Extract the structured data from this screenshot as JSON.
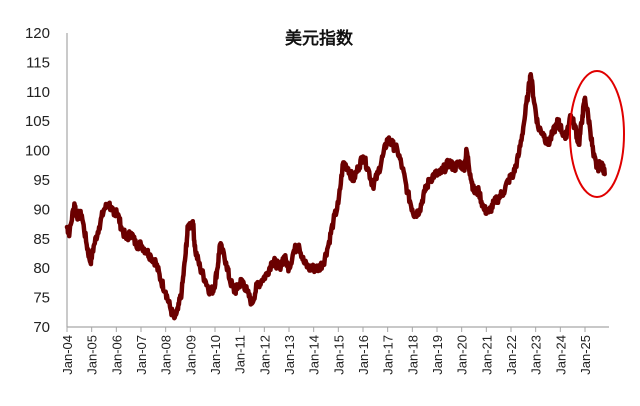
{
  "chart_data": {
    "type": "line",
    "title": "美元指数",
    "xlabel": "",
    "ylabel": "",
    "ylim": [
      70,
      120
    ],
    "yticks": [
      70,
      75,
      80,
      85,
      90,
      95,
      100,
      105,
      110,
      115,
      120
    ],
    "xticks": [
      "Jan-04",
      "Jan-05",
      "Jan-06",
      "Jan-07",
      "Jan-08",
      "Jan-09",
      "Jan-10",
      "Jan-11",
      "Jan-12",
      "Jan-13",
      "Jan-14",
      "Jan-15",
      "Jan-16",
      "Jan-17",
      "Jan-18",
      "Jan-19",
      "Jan-20",
      "Jan-21",
      "Jan-22",
      "Jan-23",
      "Jan-24",
      "Jan-25"
    ],
    "grid": false,
    "legend": null,
    "series_color": "#6b0000",
    "annotation": {
      "type": "ellipse",
      "color": "#e00000",
      "label": "highlight of 2024-2025 decline"
    },
    "series": [
      {
        "name": "美元指数",
        "x": [
          2004.0,
          2004.1,
          2004.3,
          2004.4,
          2004.6,
          2004.8,
          2004.95,
          2005.1,
          2005.3,
          2005.5,
          2005.7,
          2005.9,
          2006.0,
          2006.2,
          2006.4,
          2006.6,
          2006.8,
          2007.0,
          2007.2,
          2007.4,
          2007.6,
          2007.8,
          2008.0,
          2008.2,
          2008.35,
          2008.5,
          2008.65,
          2008.8,
          2008.9,
          2009.1,
          2009.2,
          2009.4,
          2009.6,
          2009.8,
          2009.95,
          2010.1,
          2010.2,
          2010.45,
          2010.6,
          2010.8,
          2010.95,
          2011.1,
          2011.3,
          2011.5,
          2011.7,
          2011.9,
          2012.1,
          2012.3,
          2012.45,
          2012.6,
          2012.8,
          2013.0,
          2013.2,
          2013.4,
          2013.6,
          2013.8,
          2014.0,
          2014.2,
          2014.4,
          2014.6,
          2014.8,
          2015.0,
          2015.2,
          2015.4,
          2015.6,
          2015.8,
          2016.0,
          2016.2,
          2016.4,
          2016.6,
          2016.8,
          2017.0,
          2017.2,
          2017.4,
          2017.6,
          2017.8,
          2018.0,
          2018.1,
          2018.3,
          2018.5,
          2018.7,
          2018.9,
          2019.1,
          2019.3,
          2019.5,
          2019.7,
          2019.9,
          2020.1,
          2020.2,
          2020.35,
          2020.5,
          2020.7,
          2020.9,
          2021.1,
          2021.3,
          2021.5,
          2021.7,
          2021.9,
          2022.1,
          2022.3,
          2022.5,
          2022.7,
          2022.8,
          2022.95,
          2023.1,
          2023.3,
          2023.5,
          2023.7,
          2023.9,
          2024.0,
          2024.2,
          2024.4,
          2024.6,
          2024.75,
          2024.9,
          2025.0,
          2025.2,
          2025.35,
          2025.5,
          2025.65,
          2025.8
        ],
        "values": [
          87,
          86,
          91,
          89,
          89,
          84,
          81,
          84,
          87,
          90,
          91,
          89,
          90,
          87,
          85,
          86,
          84,
          84,
          83,
          82,
          81,
          78,
          76,
          73,
          71.5,
          73,
          76,
          82,
          87,
          88,
          83,
          80,
          78,
          76,
          76.5,
          80,
          84,
          81,
          78,
          76,
          77,
          78,
          76,
          74,
          77,
          78,
          79,
          81,
          81,
          80,
          82,
          80,
          83,
          84,
          81,
          80,
          80,
          80,
          81,
          84,
          88,
          91,
          98,
          97,
          95,
          97,
          99,
          97,
          94,
          96,
          99,
          102,
          101,
          100,
          97,
          93,
          90,
          89,
          90,
          93,
          95,
          96,
          96,
          97,
          98,
          97,
          98,
          97,
          100,
          96,
          93,
          93,
          90,
          89.5,
          91,
          92,
          93,
          95,
          96,
          99,
          104,
          110,
          113,
          108,
          104,
          103,
          101,
          103,
          105,
          104,
          102,
          106,
          104,
          101,
          106,
          109,
          104,
          99,
          97,
          98,
          96
        ]
      }
    ]
  }
}
